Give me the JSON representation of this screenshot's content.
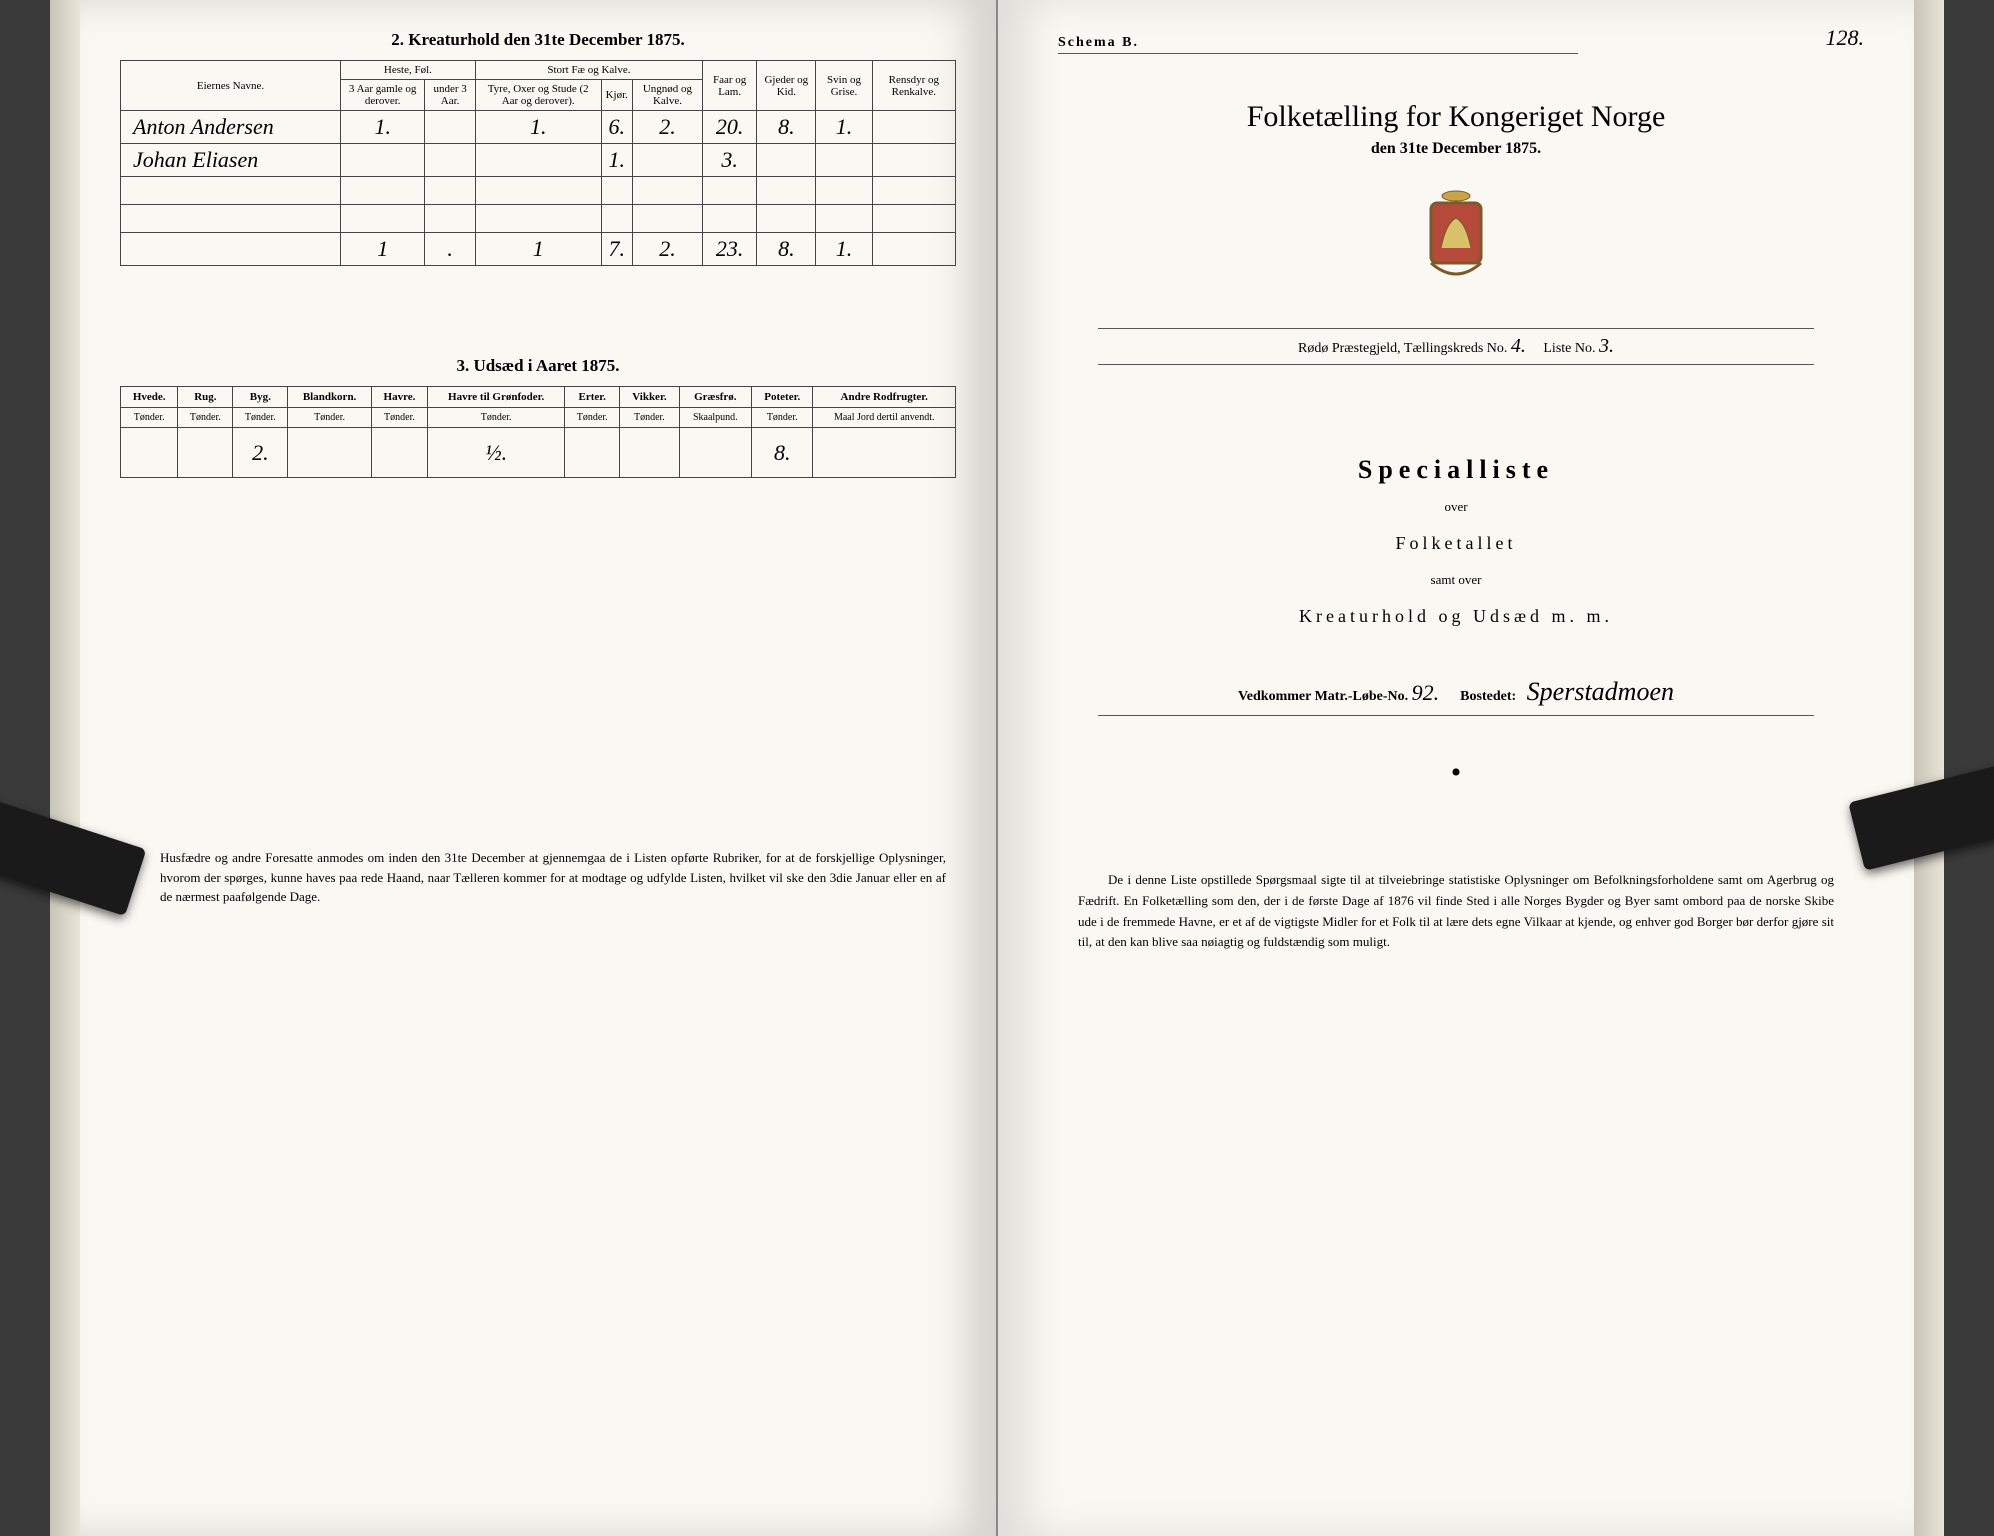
{
  "left": {
    "section2_title": "2.  Kreaturhold den 31te December 1875.",
    "table2": {
      "col_owner": "Eiernes Navne.",
      "grp_horse": "Heste, Føl.",
      "grp_cattle": "Stort Fæ og Kalve.",
      "col_sheep": "Faar og Lam.",
      "col_goat": "Gjeder og Kid.",
      "col_pig": "Svin og Grise.",
      "col_rein": "Rensdyr og Renkalve.",
      "sub_h1": "3 Aar gamle og derover.",
      "sub_h2": "under 3 Aar.",
      "sub_c1": "Tyre, Oxer og Stude (2 Aar og derover).",
      "sub_c2": "Kjør.",
      "sub_c3": "Ungnød og Kalve.",
      "rows": [
        {
          "name": "Anton Andersen",
          "h1": "1.",
          "h2": "",
          "c1": "1.",
          "c2": "6.",
          "c3": "2.",
          "sheep": "20.",
          "goat": "8.",
          "pig": "1.",
          "rein": ""
        },
        {
          "name": "Johan Eliasen",
          "h1": "",
          "h2": "",
          "c1": "",
          "c2": "1.",
          "c3": "",
          "sheep": "3.",
          "goat": "",
          "pig": "",
          "rein": ""
        }
      ],
      "totals": {
        "h1": "1",
        "h2": ".",
        "c1": "1",
        "c2": "7.",
        "c3": "2.",
        "sheep": "23.",
        "goat": "8.",
        "pig": "1.",
        "rein": ""
      }
    },
    "section3_title": "3.  Udsæd i Aaret 1875.",
    "seed_cols": [
      {
        "top": "Hvede.",
        "unit": "Tønder."
      },
      {
        "top": "Rug.",
        "unit": "Tønder."
      },
      {
        "top": "Byg.",
        "unit": "Tønder."
      },
      {
        "top": "Blandkorn.",
        "unit": "Tønder."
      },
      {
        "top": "Havre.",
        "unit": "Tønder."
      },
      {
        "top": "Havre til Grønfoder.",
        "unit": "Tønder."
      },
      {
        "top": "Erter.",
        "unit": "Tønder."
      },
      {
        "top": "Vikker.",
        "unit": "Tønder."
      },
      {
        "top": "Græsfrø.",
        "unit": "Skaalpund."
      },
      {
        "top": "Poteter.",
        "unit": "Tønder."
      },
      {
        "top": "Andre Rodfrugter.",
        "unit": "Maal Jord dertil anvendt."
      }
    ],
    "seed_values": [
      "",
      "",
      "2.",
      "",
      "",
      "½.",
      "",
      "",
      "",
      "8.",
      ""
    ],
    "footnote_lead": "Husfædre og andre Foresatte anmodes om inden den 31te December at gjennemgaa de i Listen opførte Rubriker, for at de forskjellige Oplysninger, hvorom der spørges, kunne haves paa rede Haand, naar Tælleren kommer for at modtage og udfylde Listen, hvilket vil ske den 3die Januar eller en af de nærmest paafølgende Dage."
  },
  "right": {
    "schema": "Schema B.",
    "page_no": "128.",
    "main_title": "Folketælling for Kongeriget Norge",
    "subtitle": "den 31te December 1875.",
    "meta_prefix": "Rødø Præstegjeld,  Tællingskreds No.",
    "meta_kreds": "4.",
    "meta_liste_label": "Liste No.",
    "meta_liste": "3.",
    "special": "Specialliste",
    "over": "over",
    "folketallet": "Folketallet",
    "samt": "samt over",
    "kreatur": "Kreaturhold og Udsæd m. m.",
    "vedkommer_label": "Vedkommer Matr.-Løbe-No.",
    "vedkommer_no": "92.",
    "bosted_label": "Bostedet:",
    "bosted": "Sperstadmoen",
    "bodytext": "De i denne Liste opstillede Spørgsmaal sigte til at tilveiebringe statistiske Oplysninger om Befolkningsforholdene samt om Agerbrug og Fædrift.  En Folketælling som den, der i de første Dage af 1876 vil finde Sted i alle Norges Bygder og Byer samt ombord paa de norske Skibe ude i de fremmede Havne, er et af de vigtigste Midler for et Folk til at lære dets egne Vilkaar at kjende, og enhver god Borger bør derfor gjøre sit til, at den kan blive saa nøiagtig og fuldstændig som muligt."
  },
  "colors": {
    "paper": "#faf8f2",
    "ink": "#2b2b28",
    "rule": "#444444"
  }
}
